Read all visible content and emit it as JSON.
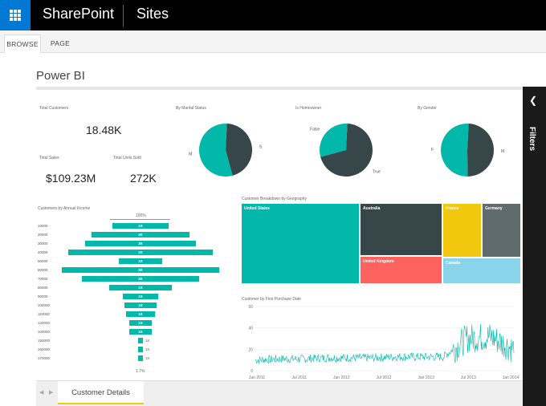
{
  "header": {
    "app_name": "SharePoint",
    "site_name": "Sites",
    "waffle_icon": "app-launcher-icon"
  },
  "ribbon": {
    "tabs": [
      {
        "label": "BROWSE",
        "active": true
      },
      {
        "label": "PAGE",
        "active": false
      }
    ]
  },
  "page": {
    "title": "Power BI"
  },
  "report": {
    "total_customers": {
      "label": "Total Customers",
      "value": "18.48K"
    },
    "total_sales": {
      "label": "Total Sales",
      "value": "$109.23M"
    },
    "total_units": {
      "label": "Total Units Sold",
      "value": "272K"
    },
    "pies": [
      {
        "title": "By Marital Status",
        "labels": [
          "S",
          "M"
        ],
        "fractions": [
          0.45,
          0.55
        ],
        "colors": [
          "#374649",
          "#01b8aa"
        ]
      },
      {
        "title": "Is Homeowner",
        "labels": [
          "True",
          "False"
        ],
        "fractions": [
          0.7,
          0.3
        ],
        "colors": [
          "#374649",
          "#01b8aa"
        ]
      },
      {
        "title": "By Gender",
        "labels": [
          "M",
          "F"
        ],
        "fractions": [
          0.49,
          0.51
        ],
        "colors": [
          "#374649",
          "#01b8aa"
        ]
      }
    ],
    "funnel": {
      "title": "Customers by Annual Income",
      "top_label": "100%",
      "bottom_label": "1.7%",
      "rows": [
        {
          "category": "10000",
          "label": "1K",
          "fraction": 0.36
        },
        {
          "category": "20000",
          "label": "3K",
          "fraction": 0.62
        },
        {
          "category": "30000",
          "label": "3K",
          "fraction": 0.7
        },
        {
          "category": "40000",
          "label": "3K",
          "fraction": 0.92
        },
        {
          "category": "50000",
          "label": "1K",
          "fraction": 0.28
        },
        {
          "category": "60000",
          "label": "3K",
          "fraction": 1.0
        },
        {
          "category": "70000",
          "label": "2K",
          "fraction": 0.74
        },
        {
          "category": "80000",
          "label": "1K",
          "fraction": 0.4
        },
        {
          "category": "90000",
          "label": "1K",
          "fraction": 0.22
        },
        {
          "category": "100000",
          "label": "1K",
          "fraction": 0.2
        },
        {
          "category": "110000",
          "label": "1K",
          "fraction": 0.18
        },
        {
          "category": "120000",
          "label": "1K",
          "fraction": 0.14
        },
        {
          "category": "130000",
          "label": "1K",
          "fraction": 0.14
        },
        {
          "category": "150000",
          "label": "1K",
          "fraction": 0.03
        },
        {
          "category": "160000",
          "label": "1K",
          "fraction": 0.03
        },
        {
          "category": "170000",
          "label": "1K",
          "fraction": 0.03
        }
      ]
    },
    "treemap": {
      "title": "Customer Breakdown by Geography",
      "cells": [
        {
          "label": "United States",
          "color": "#01b8aa"
        },
        {
          "label": "Australia",
          "color": "#374649"
        },
        {
          "label": "France",
          "color": "#f2c80f"
        },
        {
          "label": "Germany",
          "color": "#5f6b6d"
        },
        {
          "label": "United Kingdom",
          "color": "#fd625e"
        },
        {
          "label": "Canada",
          "color": "#8ad4eb"
        }
      ]
    },
    "line_chart": {
      "title": "Customer by First Purchase Date",
      "y_ticks": [
        "60",
        "40",
        "20",
        "0"
      ],
      "x_ticks": [
        "Jan 2011",
        "Jul 2011",
        "Jan 2012",
        "Jul 2012",
        "Jan 2013",
        "Jul 2013",
        "Jan 2014"
      ],
      "color": "#01b8aa"
    }
  },
  "filters_pane": {
    "label": "Filters",
    "icon": "chevron-left-icon"
  },
  "footer": {
    "page_tab": "Customer Details",
    "prev_icon": "prev-page-icon",
    "next_icon": "next-page-icon"
  },
  "chart_data": [
    {
      "type": "pie",
      "title": "By Marital Status",
      "categories": [
        "S",
        "M"
      ],
      "values": [
        0.45,
        0.55
      ]
    },
    {
      "type": "pie",
      "title": "Is Homeowner",
      "categories": [
        "True",
        "False"
      ],
      "values": [
        0.7,
        0.3
      ]
    },
    {
      "type": "pie",
      "title": "By Gender",
      "categories": [
        "M",
        "F"
      ],
      "values": [
        0.49,
        0.51
      ]
    },
    {
      "type": "bar",
      "title": "Customers by Annual Income",
      "categories": [
        "10000",
        "20000",
        "30000",
        "40000",
        "50000",
        "60000",
        "70000",
        "80000",
        "90000",
        "100000",
        "110000",
        "120000",
        "130000",
        "150000",
        "160000",
        "170000"
      ],
      "values": [
        1,
        3,
        3,
        3,
        1,
        3,
        2,
        1,
        1,
        1,
        1,
        1,
        1,
        1,
        1,
        1
      ]
    },
    {
      "type": "line",
      "title": "Customer by First Purchase Date",
      "ylim": [
        0,
        60
      ],
      "xlabel": "",
      "ylabel": "",
      "series": [
        {
          "values": [
            10,
            11,
            11,
            12,
            12,
            12,
            13,
            13,
            13,
            30,
            32,
            20
          ]
        }
      ]
    }
  ]
}
